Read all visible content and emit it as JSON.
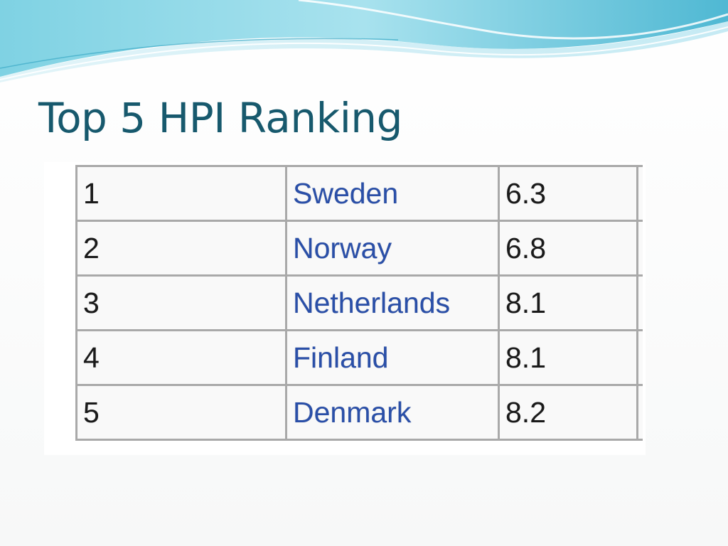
{
  "slide": {
    "title": "Top 5 HPI Ranking",
    "colors": {
      "title": "#17596d",
      "link": "#2a4fa8",
      "text": "#1a1a1a",
      "border": "#a9a9a9",
      "wave": "#5ec3d9"
    }
  },
  "table": {
    "rows": [
      {
        "rank": "1",
        "country": "Sweden",
        "score": "6.3"
      },
      {
        "rank": "2",
        "country": "Norway",
        "score": "6.8"
      },
      {
        "rank": "3",
        "country": "Netherlands",
        "score": "8.1"
      },
      {
        "rank": "4",
        "country": "Finland",
        "score": "8.1"
      },
      {
        "rank": "5",
        "country": "Denmark",
        "score": "8.2"
      }
    ]
  }
}
